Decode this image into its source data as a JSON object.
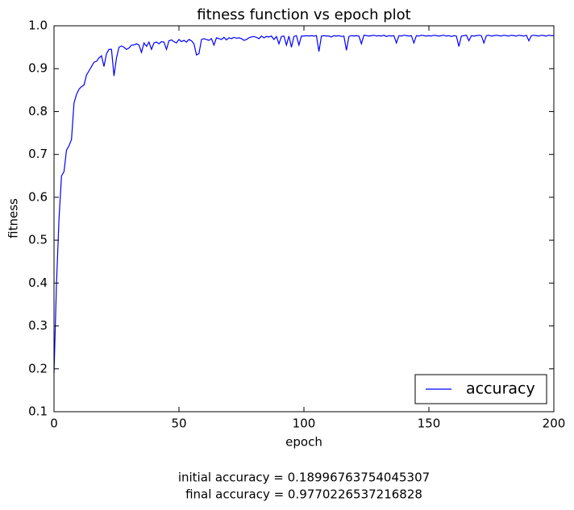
{
  "chart_data": {
    "type": "line",
    "title": "fitness function vs epoch plot",
    "xlabel": "epoch",
    "ylabel": "fitness",
    "x": [
      0,
      1,
      2,
      3,
      4,
      5,
      6,
      7,
      8,
      9,
      10,
      11,
      12,
      13,
      14,
      15,
      16,
      17,
      18,
      19,
      20,
      21,
      22,
      23,
      24,
      25,
      26,
      27,
      28,
      29,
      30,
      31,
      32,
      33,
      34,
      35,
      36,
      37,
      38,
      39,
      40,
      41,
      42,
      43,
      44,
      45,
      46,
      47,
      48,
      49,
      50,
      51,
      52,
      53,
      54,
      55,
      56,
      57,
      58,
      59,
      60,
      61,
      62,
      63,
      64,
      65,
      66,
      67,
      68,
      69,
      70,
      71,
      72,
      73,
      74,
      75,
      76,
      77,
      78,
      79,
      80,
      81,
      82,
      83,
      84,
      85,
      86,
      87,
      88,
      89,
      90,
      91,
      92,
      93,
      94,
      95,
      96,
      97,
      98,
      99,
      100,
      101,
      102,
      103,
      104,
      105,
      106,
      107,
      108,
      109,
      110,
      111,
      112,
      113,
      114,
      115,
      116,
      117,
      118,
      119,
      120,
      121,
      122,
      123,
      124,
      125,
      126,
      127,
      128,
      129,
      130,
      131,
      132,
      133,
      134,
      135,
      136,
      137,
      138,
      139,
      140,
      141,
      142,
      143,
      144,
      145,
      146,
      147,
      148,
      149,
      150,
      151,
      152,
      153,
      154,
      155,
      156,
      157,
      158,
      159,
      160,
      161,
      162,
      163,
      164,
      165,
      166,
      167,
      168,
      169,
      170,
      171,
      172,
      173,
      174,
      175,
      176,
      177,
      178,
      179,
      180,
      181,
      182,
      183,
      184,
      185,
      186,
      187,
      188,
      189,
      190,
      191,
      192,
      193,
      194,
      195,
      196,
      197,
      198,
      199,
      200
    ],
    "series": [
      {
        "name": "accuracy",
        "color": "#0000ff",
        "values": [
          0.18996763754045307,
          0.4,
          0.55,
          0.65,
          0.66,
          0.71,
          0.72,
          0.735,
          0.82,
          0.84,
          0.852,
          0.858,
          0.862,
          0.885,
          0.895,
          0.905,
          0.915,
          0.917,
          0.925,
          0.93,
          0.905,
          0.935,
          0.945,
          0.945,
          0.883,
          0.925,
          0.95,
          0.953,
          0.95,
          0.945,
          0.948,
          0.955,
          0.955,
          0.958,
          0.955,
          0.938,
          0.96,
          0.952,
          0.962,
          0.945,
          0.96,
          0.962,
          0.958,
          0.963,
          0.962,
          0.945,
          0.965,
          0.967,
          0.963,
          0.96,
          0.968,
          0.963,
          0.966,
          0.962,
          0.968,
          0.965,
          0.958,
          0.932,
          0.935,
          0.968,
          0.97,
          0.968,
          0.966,
          0.97,
          0.955,
          0.972,
          0.97,
          0.968,
          0.973,
          0.967,
          0.972,
          0.97,
          0.973,
          0.971,
          0.972,
          0.97,
          0.966,
          0.968,
          0.972,
          0.974,
          0.975,
          0.973,
          0.97,
          0.976,
          0.972,
          0.975,
          0.974,
          0.976,
          0.968,
          0.975,
          0.958,
          0.975,
          0.976,
          0.955,
          0.976,
          0.95,
          0.975,
          0.977,
          0.955,
          0.976,
          0.976,
          0.977,
          0.976,
          0.977,
          0.976,
          0.977,
          0.94,
          0.976,
          0.977,
          0.976,
          0.976,
          0.974,
          0.977,
          0.976,
          0.977,
          0.975,
          0.976,
          0.943,
          0.975,
          0.977,
          0.976,
          0.977,
          0.976,
          0.958,
          0.978,
          0.977,
          0.976,
          0.977,
          0.978,
          0.976,
          0.977,
          0.976,
          0.978,
          0.975,
          0.977,
          0.976,
          0.977,
          0.96,
          0.977,
          0.976,
          0.978,
          0.977,
          0.976,
          0.977,
          0.96,
          0.977,
          0.976,
          0.978,
          0.977,
          0.976,
          0.977,
          0.976,
          0.978,
          0.977,
          0.976,
          0.977,
          0.978,
          0.976,
          0.977,
          0.975,
          0.977,
          0.976,
          0.952,
          0.976,
          0.977,
          0.978,
          0.965,
          0.977,
          0.976,
          0.977,
          0.978,
          0.977,
          0.96,
          0.977,
          0.978,
          0.976,
          0.977,
          0.978,
          0.977,
          0.976,
          0.978,
          0.977,
          0.976,
          0.978,
          0.977,
          0.976,
          0.978,
          0.977,
          0.976,
          0.978,
          0.965,
          0.977,
          0.978,
          0.977,
          0.976,
          0.978,
          0.977,
          0.976,
          0.978,
          0.977,
          0.9770226537216828
        ]
      }
    ],
    "xlim": [
      0,
      200
    ],
    "xticks": [
      0,
      50,
      100,
      150,
      200
    ],
    "ylim": [
      0.1,
      1
    ],
    "yticks": [
      0.1,
      0.2,
      0.3,
      0.4,
      0.5,
      0.6,
      0.7,
      0.8,
      0.9,
      {
        "value": 1,
        "label": "1.0"
      }
    ],
    "grid": false,
    "legend": "lower right",
    "annotations": [
      "initial accuracy = 0.18996763754045307",
      "final accuracy = 0.9770226537216828"
    ]
  }
}
